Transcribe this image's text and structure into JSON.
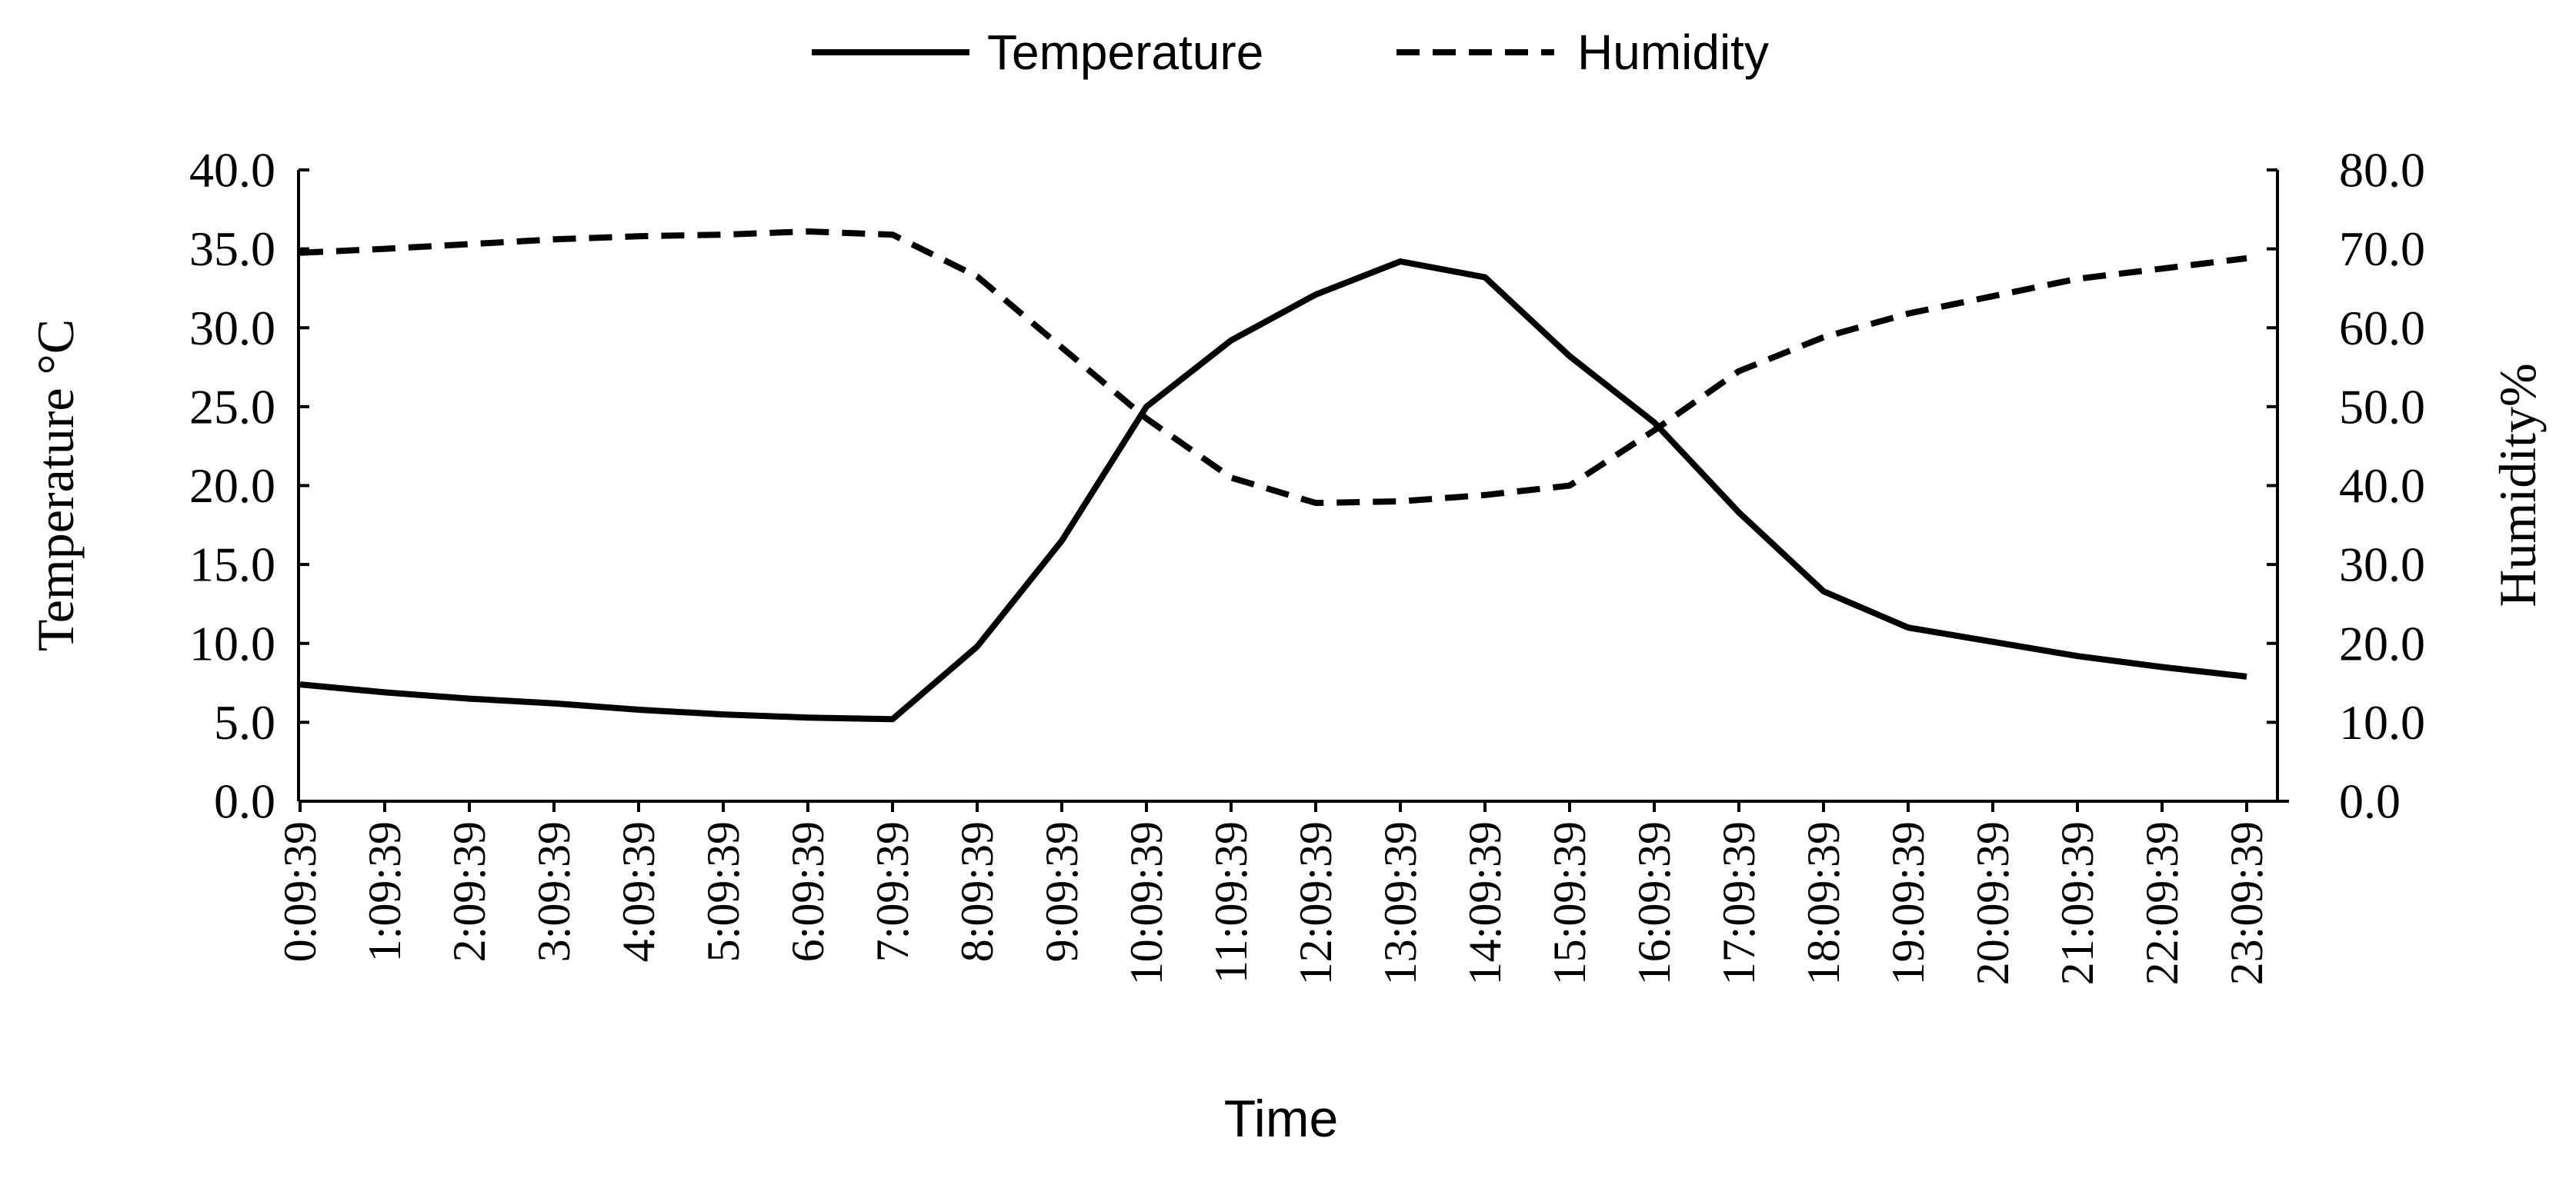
{
  "chart_data": {
    "type": "line",
    "categories": [
      "0:09:39",
      "1:09:39",
      "2:09:39",
      "3:09:39",
      "4:09:39",
      "5:09:39",
      "6:09:39",
      "7:09:39",
      "8:09:39",
      "9:09:39",
      "10:09:39",
      "11:09:39",
      "12:09:39",
      "13:09:39",
      "14:09:39",
      "15:09:39",
      "16:09:39",
      "17:09:39",
      "18:09:39",
      "19:09:39",
      "20:09:39",
      "21:09:39",
      "22:09:39",
      "23:09:39"
    ],
    "series": [
      {
        "name": "Temperature",
        "axis": "left",
        "style": "solid",
        "values": [
          7.4,
          6.9,
          6.5,
          6.2,
          5.8,
          5.5,
          5.3,
          5.2,
          9.8,
          16.5,
          25.0,
          29.2,
          32.1,
          34.2,
          33.2,
          28.2,
          24.0,
          18.3,
          13.3,
          11.0,
          10.1,
          9.2,
          8.5,
          7.9
        ]
      },
      {
        "name": "Humidity",
        "axis": "right",
        "style": "dashed",
        "values": [
          69.5,
          70.0,
          70.6,
          71.2,
          71.6,
          71.8,
          72.2,
          71.8,
          66.5,
          57.5,
          48.5,
          41.0,
          37.8,
          38.0,
          38.8,
          40.0,
          47.0,
          54.5,
          58.8,
          61.8,
          64.0,
          66.2,
          67.5,
          68.8
        ]
      }
    ],
    "left_axis": {
      "label": "Temperature °C",
      "ylim": [
        0,
        40
      ],
      "ticks": [
        "0.0",
        "5.0",
        "10.0",
        "15.0",
        "20.0",
        "25.0",
        "30.0",
        "35.0",
        "40.0"
      ]
    },
    "right_axis": {
      "label": "Humidity%",
      "ylim": [
        0,
        80
      ],
      "ticks": [
        "0.0",
        "10.0",
        "20.0",
        "30.0",
        "40.0",
        "50.0",
        "60.0",
        "70.0",
        "80.0"
      ]
    },
    "xlabel": "Time",
    "legend": {
      "position": "top-center",
      "entries": [
        "Temperature",
        "Humidity"
      ]
    },
    "grid": false
  },
  "colors": {
    "line": "#000000",
    "axis": "#000000",
    "text": "#000000",
    "background": "#ffffff"
  }
}
